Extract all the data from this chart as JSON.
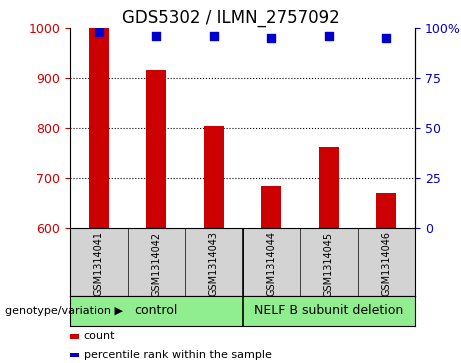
{
  "title": "GDS5302 / ILMN_2757092",
  "samples": [
    "GSM1314041",
    "GSM1314042",
    "GSM1314043",
    "GSM1314044",
    "GSM1314045",
    "GSM1314046"
  ],
  "counts": [
    1000,
    916,
    805,
    684,
    762,
    671
  ],
  "percentiles": [
    98,
    96,
    96,
    95,
    96,
    95
  ],
  "ylim_left": [
    600,
    1000
  ],
  "ylim_right": [
    0,
    100
  ],
  "yticks_left": [
    600,
    700,
    800,
    900,
    1000
  ],
  "yticks_right": [
    0,
    25,
    50,
    75,
    100
  ],
  "bar_color": "#cc0000",
  "dot_color": "#0000cc",
  "group1_label": "control",
  "group2_label": "NELF B subunit deletion",
  "group_color": "#90ee90",
  "sample_box_color": "#d3d3d3",
  "group_label_text": "genotype/variation",
  "legend_count_label": "count",
  "legend_pct_label": "percentile rank within the sample",
  "bg_color": "#ffffff",
  "tick_color_left": "#cc0000",
  "tick_color_right": "#0000cc",
  "title_fontsize": 12,
  "axis_fontsize": 9,
  "sample_fontsize": 7,
  "group_fontsize": 9,
  "legend_fontsize": 8
}
